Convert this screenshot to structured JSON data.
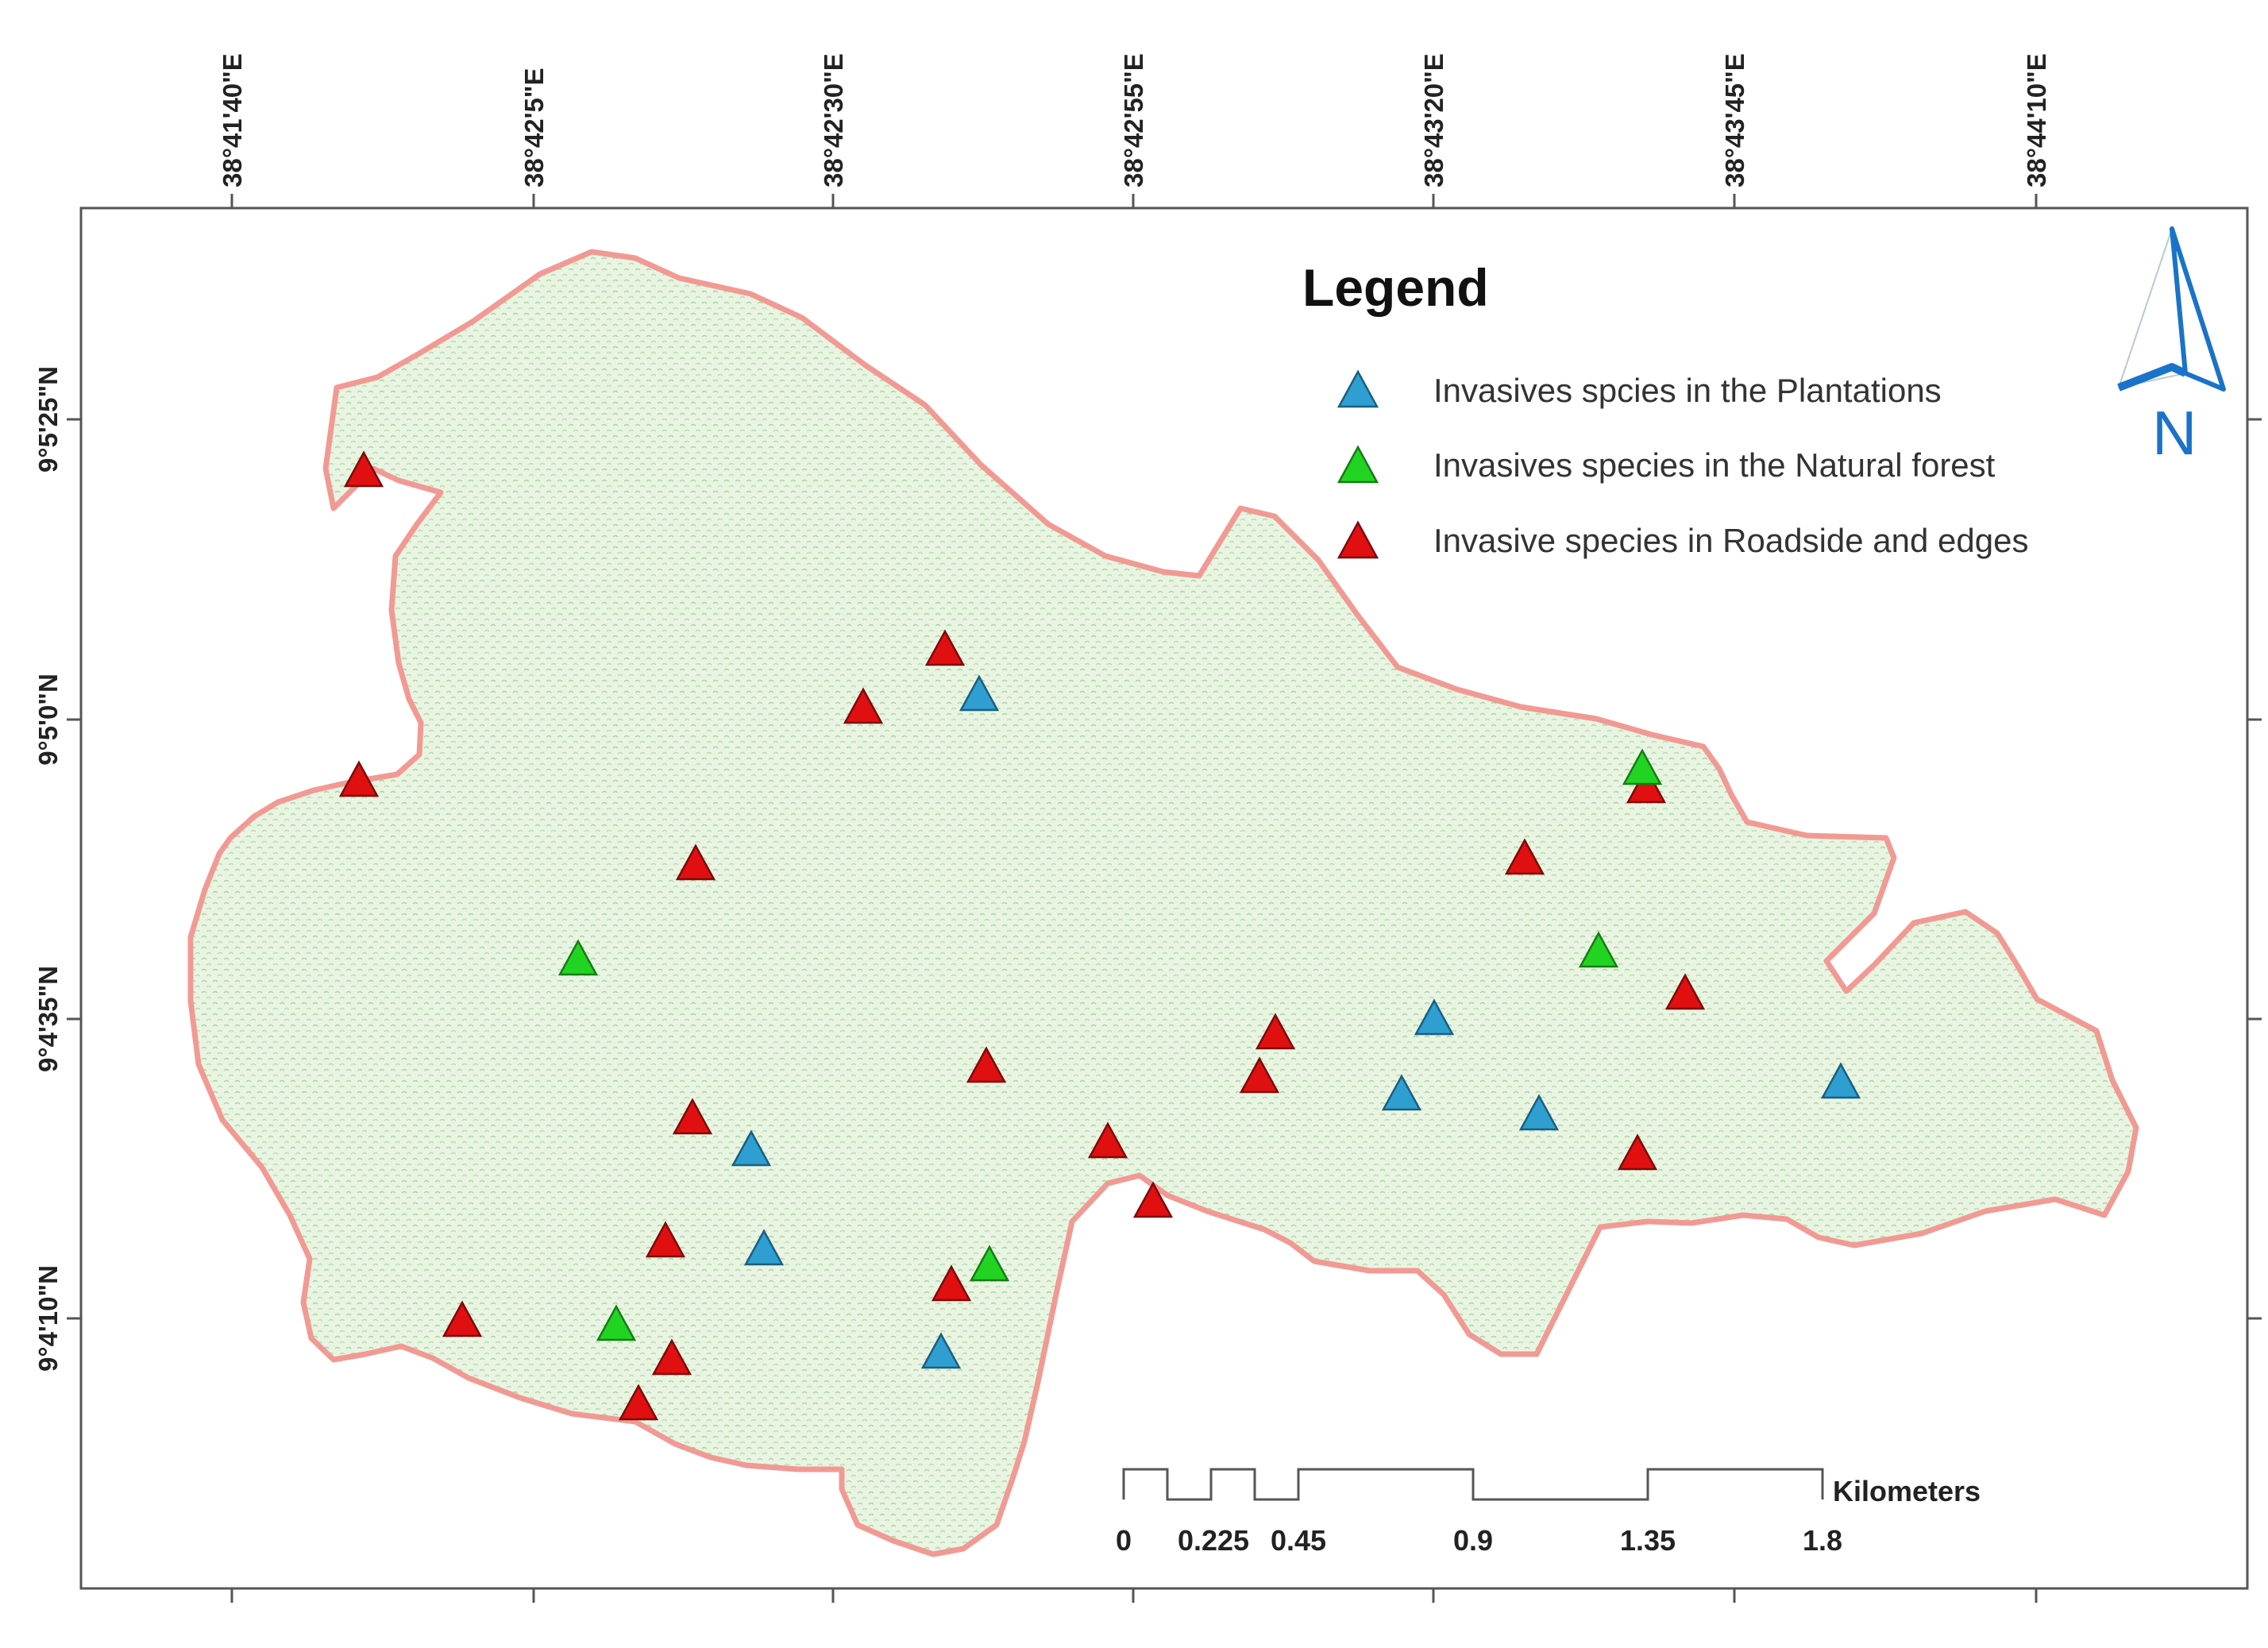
{
  "map": {
    "legend_title": "Legend",
    "legend_items": [
      {
        "label": "Invasives spcies in the Plantations",
        "color": "#2e9fd0"
      },
      {
        "label": "Invasives species  in the Natural forest",
        "color": "#22d422"
      },
      {
        "label": "Invasive species in Roadside and edges",
        "color": "#e01010"
      }
    ],
    "longitude_ticks": [
      "38°41'40\"E",
      "38°42'5\"E",
      "38°42'30\"E",
      "38°42'55\"E",
      "38°43'20\"E",
      "38°43'45\"E",
      "38°44'10\"E"
    ],
    "latitude_ticks": [
      "9°5'25\"N",
      "9°5'0\"N",
      "9°4'35\"N",
      "9°4'10\"N"
    ],
    "north_label": "N",
    "north_arrow_color": "#1a73c8",
    "scale_bar": {
      "unit": "Kilometers",
      "labels": [
        "0",
        "0.225",
        "0.45",
        "0.9",
        "1.35",
        "1.8"
      ]
    },
    "boundary_color": "#f19a94",
    "area_fill_color": "#e8f3e0"
  }
}
